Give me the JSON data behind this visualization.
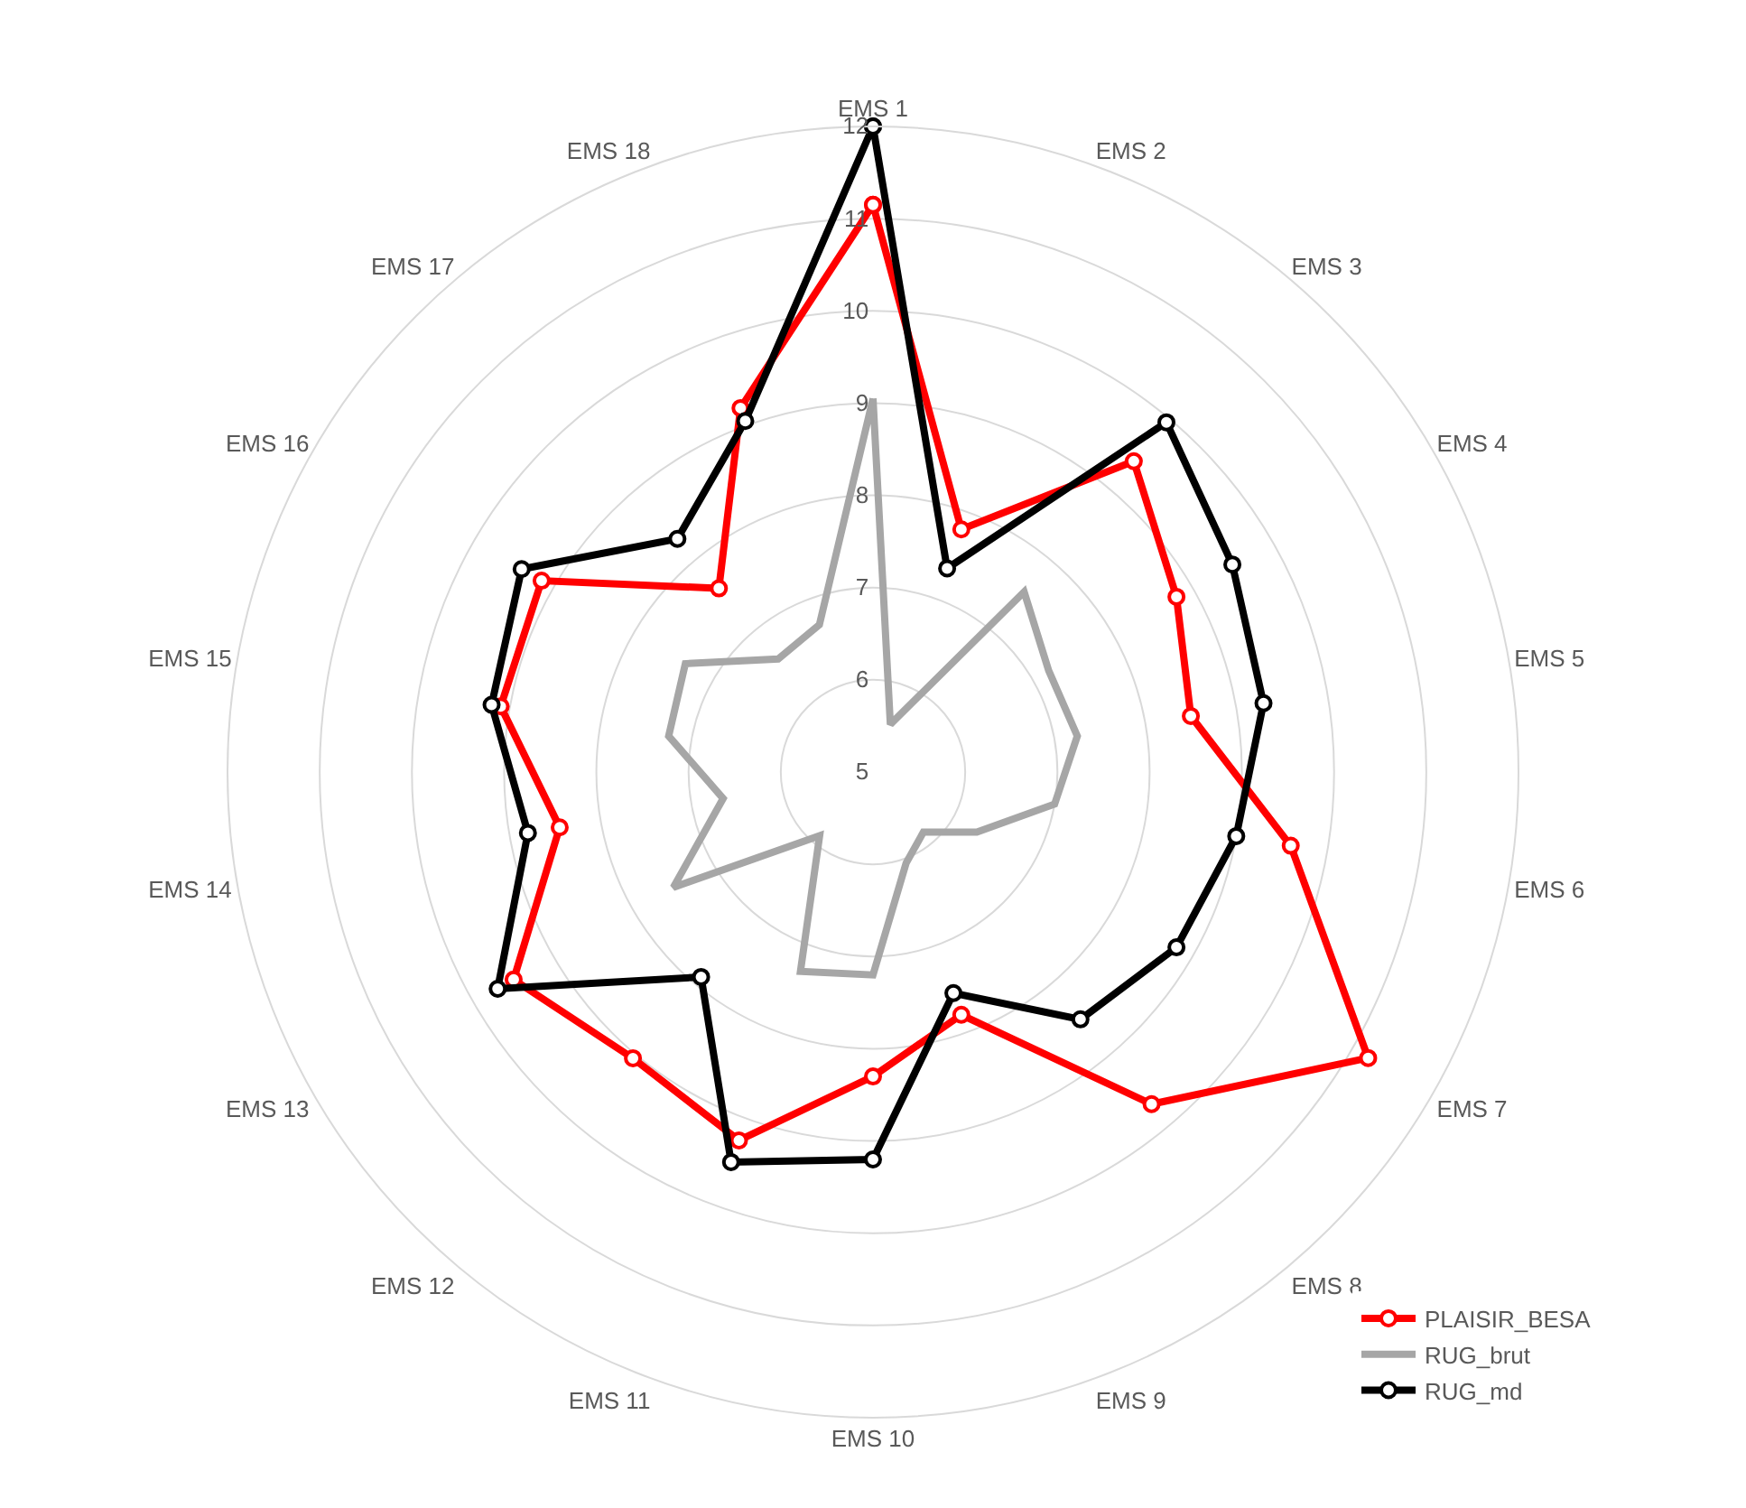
{
  "chart_data": {
    "type": "radar",
    "categories": [
      "EMS 1",
      "EMS 2",
      "EMS 3",
      "EMS 4",
      "EMS 5",
      "EMS 6",
      "EMS 7",
      "EMS 8",
      "EMS 9",
      "EMS 10",
      "EMS 11",
      "EMS 12",
      "EMS 13",
      "EMS 14",
      "EMS 15",
      "EMS 16",
      "EMS 17",
      "EMS 18"
    ],
    "ylim": [
      5,
      12
    ],
    "yticks": [
      5,
      6,
      7,
      8,
      9,
      10,
      11,
      12
    ],
    "grid": true,
    "legend": "bottom right",
    "series": [
      {
        "name": "PLAISIR_BESA",
        "color": "#ff0000",
        "marker": "circle",
        "values": [
          11.15,
          7.8,
          9.4,
          8.8,
          8.5,
          9.6,
          11.2,
          9.7,
          7.8,
          8.3,
          9.25,
          9.05,
          9.5,
          8.45,
          9.1,
          9.15,
          7.6,
          9.2
        ]
      },
      {
        "name": "RUG_brut",
        "color": "#a6a6a6",
        "marker": "none",
        "values": [
          9.05,
          5.55,
          7.55,
          7.2,
          7.25,
          7.0,
          6.3,
          5.85,
          6.05,
          7.2,
          7.3,
          5.9,
          7.5,
          6.65,
          7.25,
          7.35,
          6.6,
          6.7
        ]
      },
      {
        "name": "RUG_md",
        "color": "#000000",
        "marker": "circle",
        "values": [
          12.0,
          7.35,
          9.95,
          9.5,
          9.3,
          9.0,
          8.8,
          8.5,
          7.55,
          9.2,
          9.5,
          7.9,
          9.7,
          8.8,
          9.2,
          9.4,
          8.3,
          9.05
        ]
      }
    ]
  }
}
